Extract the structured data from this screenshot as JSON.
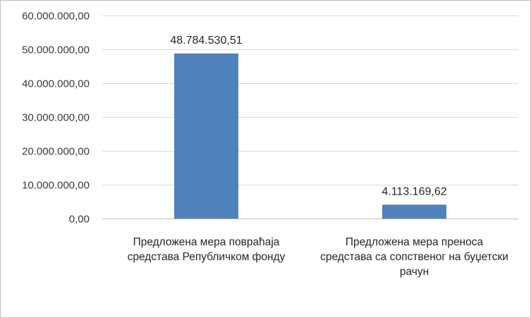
{
  "chart_data": {
    "type": "bar",
    "categories": [
      [
        "Предложена мера повраћаја",
        "средстава Републичком фонду"
      ],
      [
        "Предложена мера преноса",
        "средстава са сопственог на буџетски",
        "рачун"
      ]
    ],
    "values": [
      48784530.51,
      4113169.62
    ],
    "data_labels": [
      "48.784.530,51",
      "4.113.169,62"
    ],
    "y_ticks": [
      {
        "value": 0,
        "label": "0,00"
      },
      {
        "value": 10000000,
        "label": "10.000.000,00"
      },
      {
        "value": 20000000,
        "label": "20.000.000,00"
      },
      {
        "value": 30000000,
        "label": "30.000.000,00"
      },
      {
        "value": 40000000,
        "label": "40.000.000,00"
      },
      {
        "value": 50000000,
        "label": "50.000.000,00"
      },
      {
        "value": 60000000,
        "label": "60.000.000,00"
      }
    ],
    "ylim": [
      0,
      60000000
    ],
    "grid": true,
    "legend": "none",
    "title": "",
    "xlabel": "",
    "ylabel": "",
    "bar_color": "#4f81bd"
  }
}
